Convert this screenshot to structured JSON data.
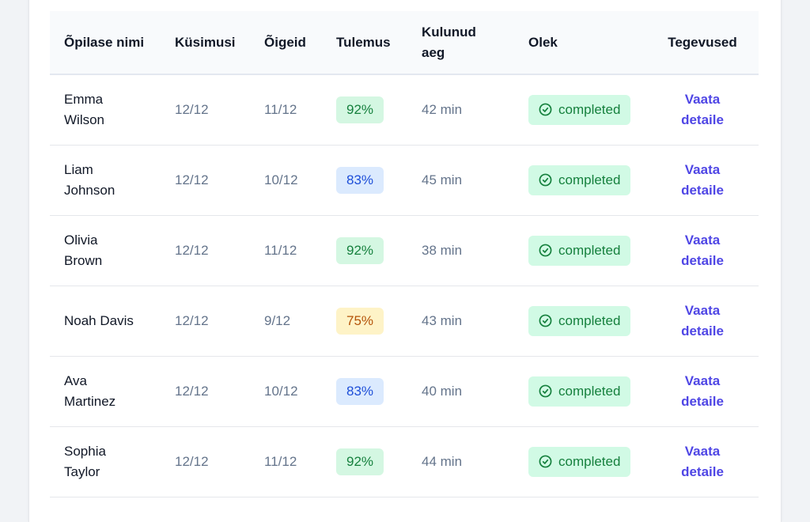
{
  "table": {
    "headers": {
      "name": "Õpilase nimi",
      "questions": "Küsimusi",
      "correct": "Õigeid",
      "result": "Tulemus",
      "time": "Kulunud aeg",
      "status": "Olek",
      "actions": "Tegevused"
    },
    "rows": [
      {
        "name": "Emma Wilson",
        "questions": "12/12",
        "correct": "11/12",
        "score": "92%",
        "score_level": "green",
        "time": "42 min",
        "status": "completed",
        "action": "Vaata detaile"
      },
      {
        "name": "Liam Johnson",
        "questions": "12/12",
        "correct": "10/12",
        "score": "83%",
        "score_level": "blue",
        "time": "45 min",
        "status": "completed",
        "action": "Vaata detaile"
      },
      {
        "name": "Olivia Brown",
        "questions": "12/12",
        "correct": "11/12",
        "score": "92%",
        "score_level": "green",
        "time": "38 min",
        "status": "completed",
        "action": "Vaata detaile"
      },
      {
        "name": "Noah Davis",
        "questions": "12/12",
        "correct": "9/12",
        "score": "75%",
        "score_level": "amber",
        "time": "43 min",
        "status": "completed",
        "action": "Vaata detaile"
      },
      {
        "name": "Ava Martinez",
        "questions": "12/12",
        "correct": "10/12",
        "score": "83%",
        "score_level": "blue",
        "time": "40 min",
        "status": "completed",
        "action": "Vaata detaile"
      },
      {
        "name": "Sophia Taylor",
        "questions": "12/12",
        "correct": "11/12",
        "score": "92%",
        "score_level": "green",
        "time": "44 min",
        "status": "completed",
        "action": "Vaata detaile"
      }
    ]
  },
  "colors": {
    "green_bg": "#d4f7e2",
    "blue_bg": "#dbeafe",
    "amber_bg": "#fef3c7",
    "link": "#4f46e5"
  },
  "icons": {
    "status": "check-circle-icon"
  }
}
